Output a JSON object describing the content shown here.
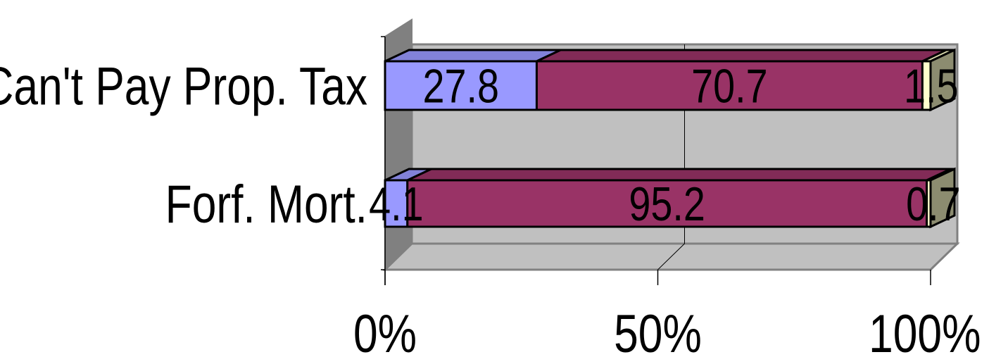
{
  "chart_data": {
    "type": "bar",
    "orientation": "horizontal",
    "stacked": "percent",
    "style": "3d",
    "categories": [
      "Can't Pay Prop. Tax",
      "Forf. Mort."
    ],
    "series": [
      {
        "values": [
          27.8,
          4.1
        ],
        "color": "#9999ff"
      },
      {
        "values": [
          70.7,
          95.2
        ],
        "color": "#993366"
      },
      {
        "values": [
          1.5,
          0.7
        ],
        "color": "#ffffcc"
      }
    ],
    "data_labels": [
      [
        "27.8",
        "70.7",
        "1.5"
      ],
      [
        "4.1",
        "95.2",
        "0.7"
      ]
    ],
    "x_ticks": [
      "0%",
      "50%",
      "100%"
    ],
    "xlim": [
      0,
      100
    ],
    "grid": true,
    "legend": "none",
    "title": "",
    "xlabel": "",
    "ylabel": ""
  }
}
